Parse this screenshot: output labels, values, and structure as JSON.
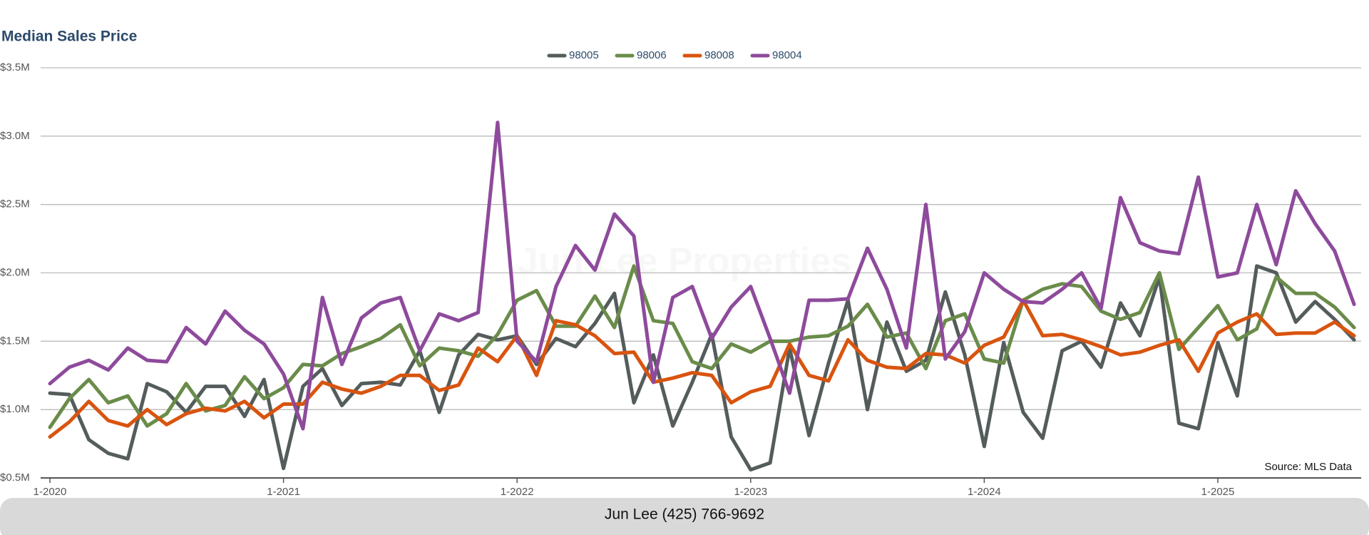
{
  "chart_data": {
    "type": "line",
    "title": "Median Sales Price",
    "watermark": "Jun Lee Properties",
    "source": "Source: MLS Data",
    "footer": "Jun Lee (425) 766-9692",
    "categories": [
      "1-2020",
      null,
      null,
      null,
      null,
      null,
      null,
      null,
      null,
      null,
      null,
      null,
      "1-2021",
      null,
      null,
      null,
      null,
      null,
      null,
      null,
      null,
      null,
      null,
      null,
      "1-2022",
      null,
      null,
      null,
      null,
      null,
      null,
      null,
      null,
      null,
      null,
      null,
      "1-2023",
      null,
      null,
      null,
      null,
      null,
      null,
      null,
      null,
      null,
      null,
      null,
      "1-2024",
      null,
      null,
      null,
      null,
      null,
      null,
      null,
      null,
      null,
      null,
      null,
      "1-2025",
      null,
      null,
      null,
      null,
      null,
      null,
      null
    ],
    "ylim": [
      500000,
      3500000
    ],
    "yticks": [
      {
        "value": 500000,
        "label": "$0.5M"
      },
      {
        "value": 1000000,
        "label": "$1.0M"
      },
      {
        "value": 1500000,
        "label": "$1.5M"
      },
      {
        "value": 2000000,
        "label": "$2.0M"
      },
      {
        "value": 2500000,
        "label": "$2.5M"
      },
      {
        "value": 3000000,
        "label": "$3.0M"
      },
      {
        "value": 3500000,
        "label": "$3.5M"
      }
    ],
    "grid": true,
    "legend": "top",
    "series": [
      {
        "name": "98005",
        "color": "#545c5c",
        "values": [
          1120000,
          1110000,
          780000,
          680000,
          640000,
          1190000,
          1130000,
          980000,
          1170000,
          1170000,
          950000,
          1220000,
          570000,
          1170000,
          1300000,
          1030000,
          1190000,
          1200000,
          1180000,
          1430000,
          980000,
          1400000,
          1550000,
          1510000,
          1540000,
          1330000,
          1520000,
          1460000,
          1630000,
          1850000,
          1050000,
          1400000,
          880000,
          1200000,
          1550000,
          800000,
          560000,
          610000,
          1450000,
          810000,
          1340000,
          1800000,
          1000000,
          1640000,
          1280000,
          1360000,
          1860000,
          1400000,
          730000,
          1490000,
          980000,
          790000,
          1430000,
          1500000,
          1310000,
          1780000,
          1540000,
          1970000,
          900000,
          860000,
          1490000,
          1100000,
          2050000,
          2000000,
          1640000,
          1790000,
          1660000,
          1510000
        ]
      },
      {
        "name": "98006",
        "color": "#6a8c4a",
        "values": [
          870000,
          1080000,
          1220000,
          1050000,
          1100000,
          880000,
          970000,
          1190000,
          990000,
          1030000,
          1240000,
          1080000,
          1160000,
          1330000,
          1320000,
          1410000,
          1460000,
          1520000,
          1620000,
          1320000,
          1450000,
          1430000,
          1390000,
          1550000,
          1800000,
          1870000,
          1610000,
          1610000,
          1830000,
          1600000,
          2050000,
          1650000,
          1630000,
          1350000,
          1300000,
          1480000,
          1420000,
          1500000,
          1500000,
          1530000,
          1540000,
          1610000,
          1770000,
          1530000,
          1560000,
          1300000,
          1650000,
          1700000,
          1370000,
          1340000,
          1800000,
          1880000,
          1920000,
          1900000,
          1720000,
          1660000,
          1710000,
          2000000,
          1440000,
          1600000,
          1760000,
          1510000,
          1590000,
          1970000,
          1850000,
          1850000,
          1750000,
          1600000
        ]
      },
      {
        "name": "98008",
        "color": "#d9540f",
        "values": [
          800000,
          910000,
          1060000,
          920000,
          880000,
          1000000,
          890000,
          970000,
          1010000,
          990000,
          1060000,
          940000,
          1040000,
          1040000,
          1200000,
          1150000,
          1120000,
          1170000,
          1250000,
          1250000,
          1140000,
          1180000,
          1450000,
          1350000,
          1540000,
          1250000,
          1650000,
          1620000,
          1540000,
          1410000,
          1420000,
          1200000,
          1230000,
          1270000,
          1250000,
          1050000,
          1130000,
          1170000,
          1480000,
          1250000,
          1210000,
          1510000,
          1360000,
          1310000,
          1300000,
          1410000,
          1400000,
          1340000,
          1470000,
          1530000,
          1800000,
          1540000,
          1550000,
          1510000,
          1460000,
          1400000,
          1420000,
          1470000,
          1510000,
          1280000,
          1560000,
          1640000,
          1700000,
          1550000,
          1560000,
          1560000,
          1640000,
          1540000
        ]
      },
      {
        "name": "98004",
        "color": "#8e4a9c",
        "values": [
          1190000,
          1310000,
          1360000,
          1290000,
          1450000,
          1360000,
          1350000,
          1600000,
          1480000,
          1720000,
          1580000,
          1480000,
          1260000,
          860000,
          1820000,
          1330000,
          1670000,
          1780000,
          1820000,
          1430000,
          1700000,
          1650000,
          1710000,
          3100000,
          1500000,
          1350000,
          1900000,
          2200000,
          2020000,
          2430000,
          2270000,
          1200000,
          1820000,
          1900000,
          1520000,
          1750000,
          1900000,
          1520000,
          1120000,
          1800000,
          1800000,
          1810000,
          2180000,
          1880000,
          1450000,
          2500000,
          1370000,
          1570000,
          2000000,
          1880000,
          1790000,
          1780000,
          1880000,
          2000000,
          1740000,
          2550000,
          2220000,
          2160000,
          2140000,
          2700000,
          1970000,
          2000000,
          2500000,
          2060000,
          2600000,
          2360000,
          2160000,
          1770000
        ]
      }
    ]
  }
}
